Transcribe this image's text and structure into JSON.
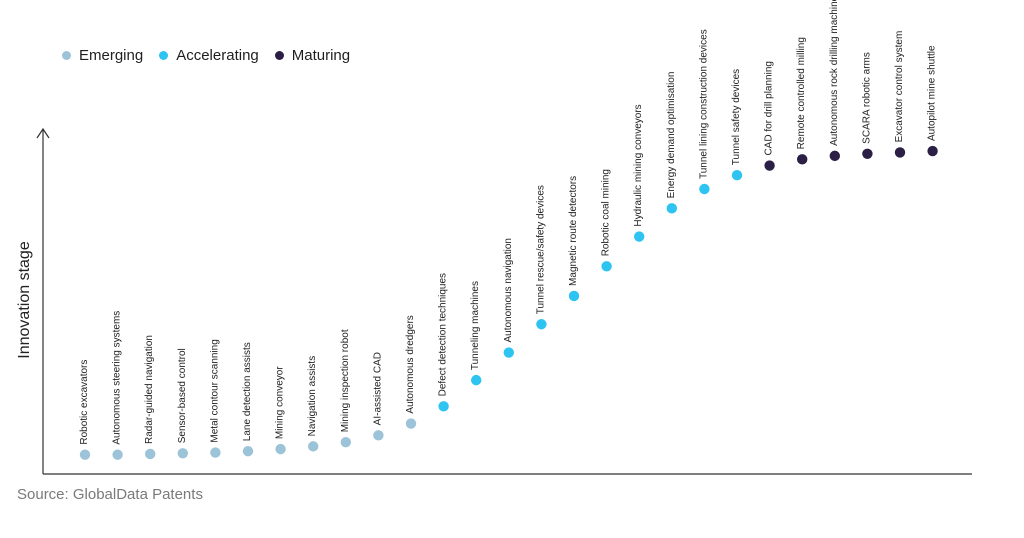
{
  "colors": {
    "Emerging": "#9cc3d8",
    "Accelerating": "#2ec4f2",
    "Maturing": "#2b1f45",
    "axis": "#333333",
    "text": "#222222"
  },
  "legend": [
    {
      "label": "Emerging",
      "color": "#9cc3d8"
    },
    {
      "label": "Accelerating",
      "color": "#2ec4f2"
    },
    {
      "label": "Maturing",
      "color": "#2b1f45"
    }
  ],
  "source": "Source: GlobalData Patents",
  "chart_data": {
    "type": "scatter",
    "ylabel": "Innovation stage",
    "xlabel": "",
    "grid": false,
    "legend_position": "top-left",
    "ylim": [
      0,
      100
    ],
    "points": [
      {
        "label": "Robotic excavators",
        "stage": "Emerging",
        "y": 3
      },
      {
        "label": "Autonomous steering systems",
        "stage": "Emerging",
        "y": 3
      },
      {
        "label": "Radar-guided navigation",
        "stage": "Emerging",
        "y": 3.2
      },
      {
        "label": "Sensor-based control",
        "stage": "Emerging",
        "y": 3.4
      },
      {
        "label": "Metal contour scanning",
        "stage": "Emerging",
        "y": 3.6
      },
      {
        "label": "Lane detection assists",
        "stage": "Emerging",
        "y": 4
      },
      {
        "label": "Mining conveyor",
        "stage": "Emerging",
        "y": 4.6
      },
      {
        "label": "Navigation assists",
        "stage": "Emerging",
        "y": 5.4
      },
      {
        "label": "Mining inspection robot",
        "stage": "Emerging",
        "y": 6.6
      },
      {
        "label": "AI-assisted CAD",
        "stage": "Emerging",
        "y": 8.6
      },
      {
        "label": "Autonomous dredgers",
        "stage": "Emerging",
        "y": 12
      },
      {
        "label": "Defect detection techniques",
        "stage": "Accelerating",
        "y": 17
      },
      {
        "label": "Tunneling machines",
        "stage": "Accelerating",
        "y": 24.6
      },
      {
        "label": "Autonomous navigation",
        "stage": "Accelerating",
        "y": 32.6
      },
      {
        "label": "Tunnel rescue/safety devices",
        "stage": "Accelerating",
        "y": 40.8
      },
      {
        "label": "Magnetic route detectors",
        "stage": "Accelerating",
        "y": 49
      },
      {
        "label": "Robotic coal mining",
        "stage": "Accelerating",
        "y": 57.6
      },
      {
        "label": "Hydraulic mining conveyors",
        "stage": "Accelerating",
        "y": 66.2
      },
      {
        "label": "Energy demand optimisation",
        "stage": "Accelerating",
        "y": 74.4
      },
      {
        "label": "Tunnel lining construction devices",
        "stage": "Accelerating",
        "y": 80
      },
      {
        "label": "Tunnel safety devices",
        "stage": "Accelerating",
        "y": 84
      },
      {
        "label": "CAD for drill planning",
        "stage": "Maturing",
        "y": 86.8
      },
      {
        "label": "Remote controlled milling",
        "stage": "Maturing",
        "y": 88.6
      },
      {
        "label": "Autonomous rock drilling machines",
        "stage": "Maturing",
        "y": 89.6
      },
      {
        "label": "SCARA robotic arms",
        "stage": "Maturing",
        "y": 90.2
      },
      {
        "label": "Excavator control system",
        "stage": "Maturing",
        "y": 90.6
      },
      {
        "label": "Autopilot mine shuttle",
        "stage": "Maturing",
        "y": 91
      }
    ]
  }
}
